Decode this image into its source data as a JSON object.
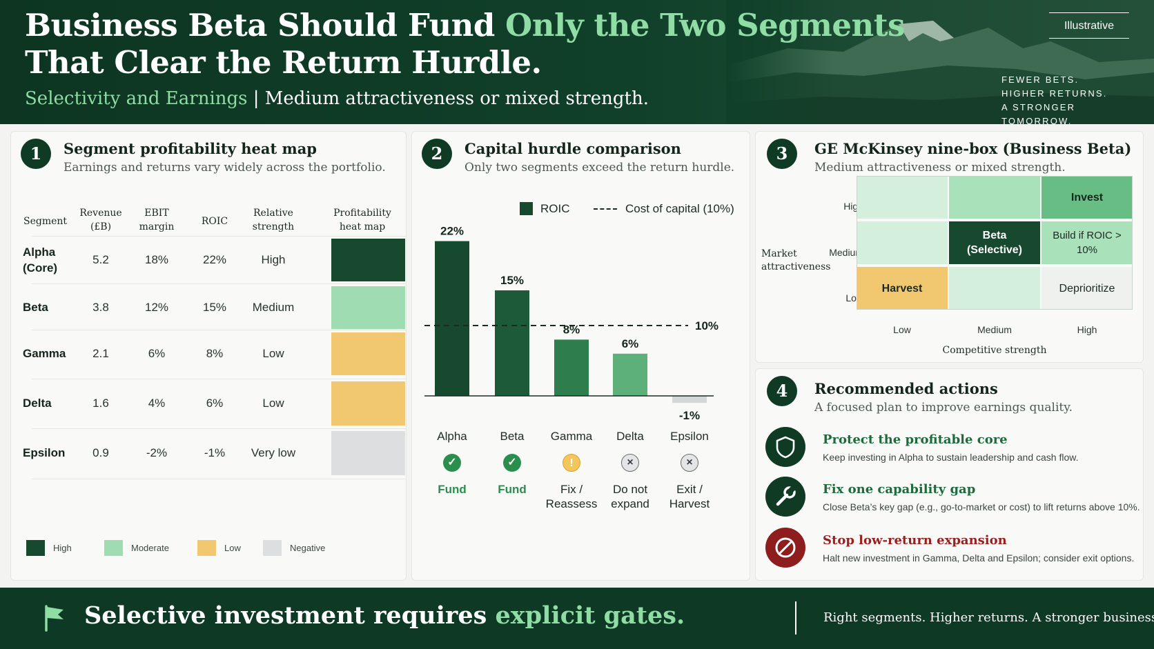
{
  "header": {
    "title_part1": "Business Beta Should Fund ",
    "title_highlight": "Only the Two Segments",
    "title_line2": "That Clear the Return Hurdle.",
    "subtitle_highlight": "Selectivity and Earnings",
    "subtitle_rest": " | Medium attractiveness or mixed strength.",
    "tag": "Illustrative",
    "tagline": [
      "FEWER BETS.",
      "HIGHER RETURNS.",
      "A STRONGER TOMORROW."
    ]
  },
  "panel1": {
    "number": "1",
    "title": "Segment profitability heat map",
    "subtitle": "Earnings and returns vary widely across the portfolio.",
    "headers": [
      "Segment",
      "Revenue (£B)",
      "EBIT margin",
      "ROIC",
      "Relative strength",
      "Profitability heat map"
    ],
    "rows": [
      {
        "segment": "Alpha (Core)",
        "revenue": "5.2",
        "ebit": "18%",
        "roic": "22%",
        "strength": "High",
        "heat": "high"
      },
      {
        "segment": "Beta",
        "revenue": "3.8",
        "ebit": "12%",
        "roic": "15%",
        "strength": "Medium",
        "heat": "moderate"
      },
      {
        "segment": "Gamma",
        "revenue": "2.1",
        "ebit": "6%",
        "roic": "8%",
        "strength": "Low",
        "heat": "low"
      },
      {
        "segment": "Delta",
        "revenue": "1.6",
        "ebit": "4%",
        "roic": "6%",
        "strength": "Low",
        "heat": "low"
      },
      {
        "segment": "Epsilon",
        "revenue": "0.9",
        "ebit": "-2%",
        "roic": "-1%",
        "strength": "Very low",
        "heat": "negative"
      }
    ],
    "legend": [
      "High",
      "Moderate",
      "Low",
      "Negative"
    ],
    "heat_colors": {
      "high": "#17492f",
      "moderate": "#9fdcb2",
      "low": "#f1c86f",
      "negative": "#dcdee0"
    }
  },
  "panel2": {
    "number": "2",
    "title": "Capital hurdle comparison",
    "subtitle": "Only two segments exceed the return hurdle.",
    "legend_roic": "ROIC",
    "legend_hurdle": "Cost of capital (10%)",
    "hurdle_label": "10%",
    "statuses": [
      {
        "label": "Fund",
        "icon": "check-icon",
        "kind": "fund"
      },
      {
        "label": "Fund",
        "icon": "check-icon",
        "kind": "fund"
      },
      {
        "label": "Fix / Reassess",
        "icon": "warning-icon",
        "kind": "fix"
      },
      {
        "label": "Do not expand",
        "icon": "x-icon",
        "kind": "stop"
      },
      {
        "label": "Exit / Harvest",
        "icon": "x-icon",
        "kind": "stop"
      }
    ]
  },
  "chart_data": {
    "type": "bar",
    "categories": [
      "Alpha",
      "Beta",
      "Gamma",
      "Delta",
      "Epsilon"
    ],
    "values": [
      22,
      15,
      8,
      6,
      -1
    ],
    "value_labels": [
      "22%",
      "15%",
      "8%",
      "6%",
      "-1%"
    ],
    "series": [
      {
        "name": "ROIC",
        "values": [
          22,
          15,
          8,
          6,
          -1
        ]
      }
    ],
    "reference_line": {
      "name": "Cost of capital (10%)",
      "value": 10
    },
    "colors": [
      "#17492f",
      "#1d5a3a",
      "#2e7d4d",
      "#5eb07a",
      "#d4d6d8"
    ],
    "ylim": [
      -1,
      22
    ],
    "legend": "top-right",
    "grid": false
  },
  "panel3": {
    "number": "3",
    "title": "GE McKinsey nine-box (Business Beta)",
    "subtitle": "Medium attractiveness or mixed strength.",
    "y_title": "Market attractiveness",
    "x_title": "Competitive strength",
    "y_levels": [
      "High",
      "Medium",
      "Low"
    ],
    "x_levels": [
      "Low",
      "Medium",
      "High"
    ],
    "cells": [
      [
        "",
        "",
        "Invest"
      ],
      [
        "",
        "Beta (Selective)",
        "Build if ROIC > 10%"
      ],
      [
        "Harvest",
        "",
        "Deprioritize"
      ]
    ]
  },
  "panel4": {
    "number": "4",
    "title": "Recommended actions",
    "subtitle": "A focused plan to improve earnings quality.",
    "actions": [
      {
        "title": "Protect the profitable core",
        "desc": "Keep investing in Alpha to sustain leadership and cash flow.",
        "icon": "shield-icon"
      },
      {
        "title": "Fix one capability gap",
        "desc": "Close Beta’s key gap (e.g., go-to-market or cost) to lift returns above 10%.",
        "icon": "wrench-icon"
      },
      {
        "title": "Stop low-return expansion",
        "desc": "Halt new investment in Gamma, Delta and Epsilon; consider exit options.",
        "icon": "prohibited-icon"
      }
    ]
  },
  "footer": {
    "main": "Selective investment requires ",
    "main_highlight": "explicit gates.",
    "right": "Right segments. Higher returns. A stronger business."
  }
}
